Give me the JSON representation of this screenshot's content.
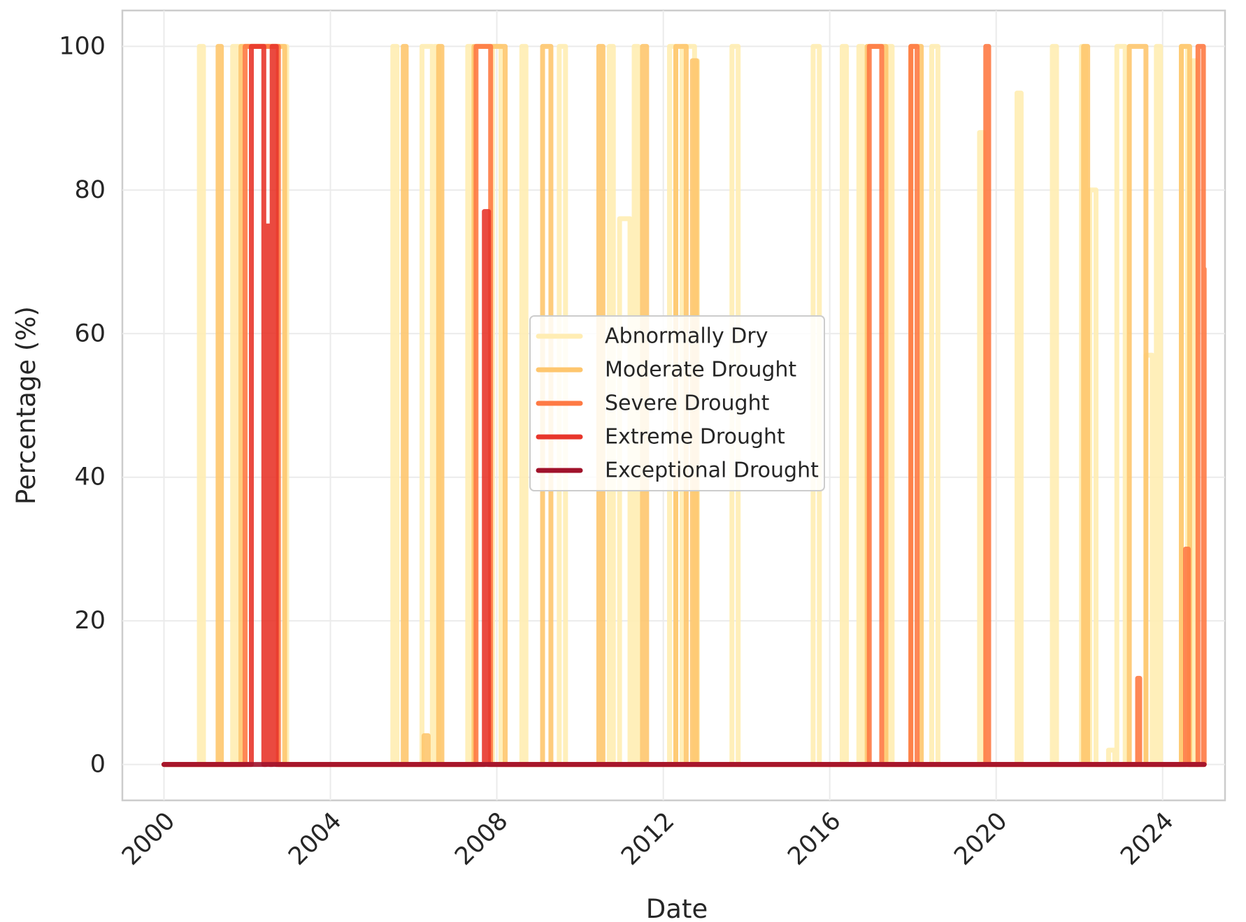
{
  "chart_data": {
    "type": "line",
    "xlabel": "Date",
    "ylabel": "Percentage (%)",
    "xlim": [
      1999.0,
      2025.5
    ],
    "ylim": [
      -5,
      105
    ],
    "xticks": [
      2000,
      2004,
      2008,
      2012,
      2016,
      2020,
      2024
    ],
    "xtick_labels": [
      "2000",
      "2004",
      "2008",
      "2012",
      "2016",
      "2020",
      "2024"
    ],
    "yticks": [
      0,
      20,
      40,
      60,
      80,
      100
    ],
    "ytick_labels": [
      "0",
      "20",
      "40",
      "60",
      "80",
      "100"
    ],
    "grid": true,
    "legend_position": "center",
    "series": [
      {
        "name": "Abnormally Dry",
        "color": "#ffedb3",
        "spikes": [
          {
            "start": 2000.85,
            "end": 2000.95,
            "value": 100
          },
          {
            "start": 2001.65,
            "end": 2001.75,
            "value": 100
          },
          {
            "start": 2001.75,
            "end": 2002.95,
            "value": 100
          },
          {
            "start": 2005.5,
            "end": 2005.6,
            "value": 100
          },
          {
            "start": 2006.2,
            "end": 2006.45,
            "value": 100
          },
          {
            "start": 2006.5,
            "end": 2006.6,
            "value": 100
          },
          {
            "start": 2007.3,
            "end": 2007.4,
            "value": 100
          },
          {
            "start": 2007.9,
            "end": 2008.1,
            "value": 100
          },
          {
            "start": 2008.6,
            "end": 2008.7,
            "value": 100
          },
          {
            "start": 2009.5,
            "end": 2009.65,
            "value": 100
          },
          {
            "start": 2010.7,
            "end": 2010.8,
            "value": 100
          },
          {
            "start": 2010.95,
            "end": 2011.2,
            "value": 76
          },
          {
            "start": 2011.3,
            "end": 2011.4,
            "value": 100
          },
          {
            "start": 2012.15,
            "end": 2012.3,
            "value": 100
          },
          {
            "start": 2012.45,
            "end": 2012.75,
            "value": 100
          },
          {
            "start": 2012.75,
            "end": 2012.82,
            "value": 98
          },
          {
            "start": 2013.65,
            "end": 2013.8,
            "value": 100
          },
          {
            "start": 2015.6,
            "end": 2015.75,
            "value": 100
          },
          {
            "start": 2016.3,
            "end": 2016.4,
            "value": 100
          },
          {
            "start": 2016.7,
            "end": 2016.8,
            "value": 100
          },
          {
            "start": 2017.4,
            "end": 2017.5,
            "value": 100
          },
          {
            "start": 2018.45,
            "end": 2018.6,
            "value": 100
          },
          {
            "start": 2019.6,
            "end": 2019.7,
            "value": 88
          },
          {
            "start": 2020.5,
            "end": 2020.6,
            "value": 93.5
          },
          {
            "start": 2021.35,
            "end": 2021.45,
            "value": 100
          },
          {
            "start": 2022.05,
            "end": 2022.15,
            "value": 100
          },
          {
            "start": 2022.25,
            "end": 2022.4,
            "value": 80
          },
          {
            "start": 2022.7,
            "end": 2022.85,
            "value": 2
          },
          {
            "start": 2022.9,
            "end": 2023.1,
            "value": 100
          },
          {
            "start": 2023.6,
            "end": 2023.75,
            "value": 57
          },
          {
            "start": 2023.85,
            "end": 2023.95,
            "value": 100
          },
          {
            "start": 2024.45,
            "end": 2024.6,
            "value": 100
          },
          {
            "start": 2024.7,
            "end": 2024.8,
            "value": 98
          }
        ]
      },
      {
        "name": "Moderate Drought",
        "color": "#fec66e",
        "spikes": [
          {
            "start": 2001.3,
            "end": 2001.38,
            "value": 100
          },
          {
            "start": 2001.85,
            "end": 2002.9,
            "value": 100
          },
          {
            "start": 2005.75,
            "end": 2005.82,
            "value": 100
          },
          {
            "start": 2006.25,
            "end": 2006.35,
            "value": 4
          },
          {
            "start": 2006.6,
            "end": 2006.68,
            "value": 100
          },
          {
            "start": 2007.45,
            "end": 2008.2,
            "value": 100
          },
          {
            "start": 2009.1,
            "end": 2009.3,
            "value": 100
          },
          {
            "start": 2010.45,
            "end": 2010.55,
            "value": 100
          },
          {
            "start": 2011.5,
            "end": 2011.6,
            "value": 100
          },
          {
            "start": 2012.3,
            "end": 2012.55,
            "value": 100
          },
          {
            "start": 2012.7,
            "end": 2012.8,
            "value": 98
          },
          {
            "start": 2016.9,
            "end": 2017.35,
            "value": 100
          },
          {
            "start": 2017.95,
            "end": 2018.2,
            "value": 100
          },
          {
            "start": 2022.1,
            "end": 2022.2,
            "value": 100
          },
          {
            "start": 2023.2,
            "end": 2023.6,
            "value": 100
          },
          {
            "start": 2024.45,
            "end": 2024.65,
            "value": 100
          }
        ]
      },
      {
        "name": "Severe Drought",
        "color": "#fe7a44",
        "spikes": [
          {
            "start": 2001.95,
            "end": 2002.75,
            "value": 100
          },
          {
            "start": 2007.5,
            "end": 2007.85,
            "value": 100
          },
          {
            "start": 2016.95,
            "end": 2017.25,
            "value": 100
          },
          {
            "start": 2017.95,
            "end": 2018.1,
            "value": 100
          },
          {
            "start": 2019.75,
            "end": 2019.82,
            "value": 100
          },
          {
            "start": 2023.4,
            "end": 2023.45,
            "value": 12
          },
          {
            "start": 2024.55,
            "end": 2024.62,
            "value": 30
          },
          {
            "start": 2024.85,
            "end": 2024.98,
            "value": 100
          },
          {
            "start": 2024.98,
            "end": 2025.0,
            "value": 69
          }
        ]
      },
      {
        "name": "Extreme Drought",
        "color": "#e8362b",
        "spikes": [
          {
            "start": 2002.1,
            "end": 2002.4,
            "value": 100
          },
          {
            "start": 2002.45,
            "end": 2002.55,
            "value": 75
          },
          {
            "start": 2002.6,
            "end": 2002.7,
            "value": 100
          },
          {
            "start": 2007.7,
            "end": 2007.8,
            "value": 77
          }
        ]
      },
      {
        "name": "Exceptional Drought",
        "color": "#a0122b",
        "spikes": []
      }
    ]
  }
}
